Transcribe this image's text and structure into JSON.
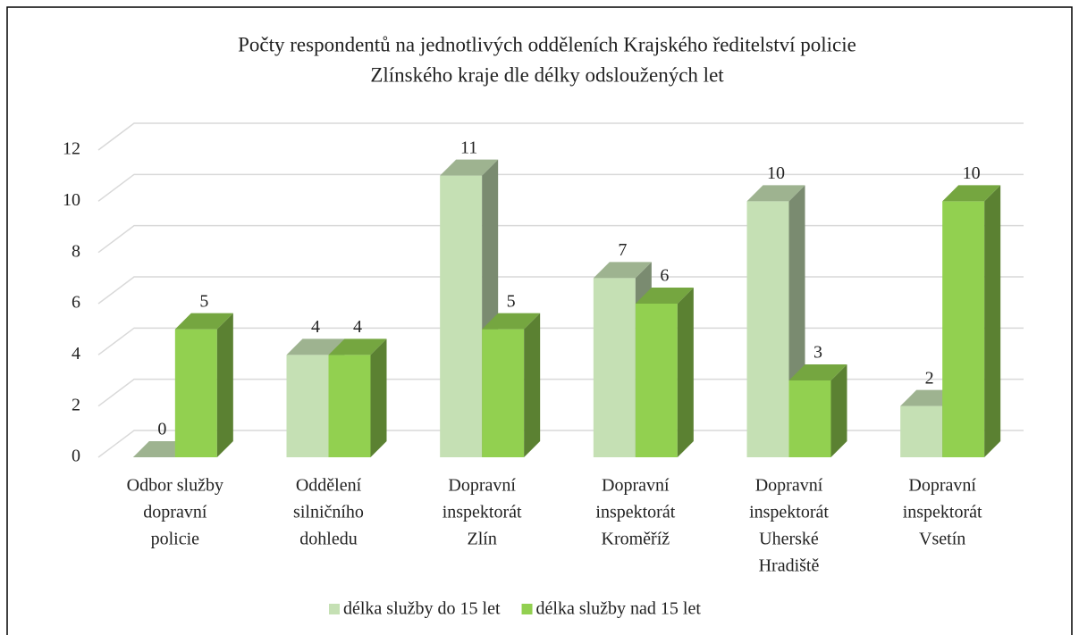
{
  "chart_data": {
    "type": "bar3d",
    "title": [
      "Počty respondentů na jednotlivých odděleních Krajského ředitelství policie",
      "Zlínského kraje dle délky odsloužených let"
    ],
    "categories": [
      [
        "Odbor služby",
        "dopravní",
        "policie"
      ],
      [
        "Oddělení",
        "silničního",
        "dohledu"
      ],
      [
        "Dopravní",
        "inspektorát",
        "Zlín"
      ],
      [
        "Dopravní",
        "inspektorát",
        "Kroměříž"
      ],
      [
        "Dopravní",
        "inspektorát",
        "Uherské",
        "Hradiště"
      ],
      [
        "Dopravní",
        "inspektorát",
        "Vsetín"
      ]
    ],
    "series": [
      {
        "name": "délka služby do 15 let",
        "color": "#c5e0b4",
        "values": [
          0,
          4,
          11,
          7,
          10,
          2
        ]
      },
      {
        "name": "délka služby nad 15 let",
        "color": "#92d050",
        "values": [
          5,
          4,
          5,
          6,
          3,
          10
        ]
      }
    ],
    "ylim": [
      0,
      12
    ],
    "yticks": [
      0,
      2,
      4,
      6,
      8,
      10,
      12
    ],
    "grid": true,
    "legend": "bottom"
  }
}
